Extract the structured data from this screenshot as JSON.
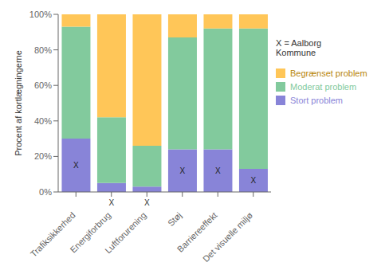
{
  "chart_data": {
    "type": "bar",
    "stacked": true,
    "categories": [
      "Trafiksikkerhed",
      "Energiforbrug",
      "Luftforurening",
      "Støj",
      "Barriereeffekt",
      "Det visuelle miljø"
    ],
    "series": [
      {
        "name": "Stort problem",
        "color": "#8884d8",
        "values": [
          30,
          5,
          3,
          24,
          24,
          13
        ]
      },
      {
        "name": "Moderat problem",
        "color": "#82ca9d",
        "values": [
          63,
          37,
          23,
          63,
          68,
          79
        ]
      },
      {
        "name": "Begrænset problem",
        "color": "#ffc658",
        "values": [
          7,
          58,
          74,
          13,
          8,
          8
        ]
      }
    ],
    "ylabel": "Procent af kortlægningerne",
    "ylim": [
      0,
      100
    ],
    "yticks": [
      {
        "value": 0,
        "label": "0%"
      },
      {
        "value": 20,
        "label": "20%"
      },
      {
        "value": 40,
        "label": "40%"
      },
      {
        "value": 60,
        "label": "60%"
      },
      {
        "value": 80,
        "label": "80%"
      },
      {
        "value": 100,
        "label": "100%"
      }
    ],
    "grid": false,
    "legend": "right",
    "annotation": [
      "X = Aalborg",
      "Kommune"
    ],
    "x_marks": {
      "text": "X",
      "in_bar": [
        true,
        false,
        false,
        true,
        true,
        true
      ],
      "below": [
        false,
        true,
        true,
        false,
        false,
        false
      ]
    }
  }
}
